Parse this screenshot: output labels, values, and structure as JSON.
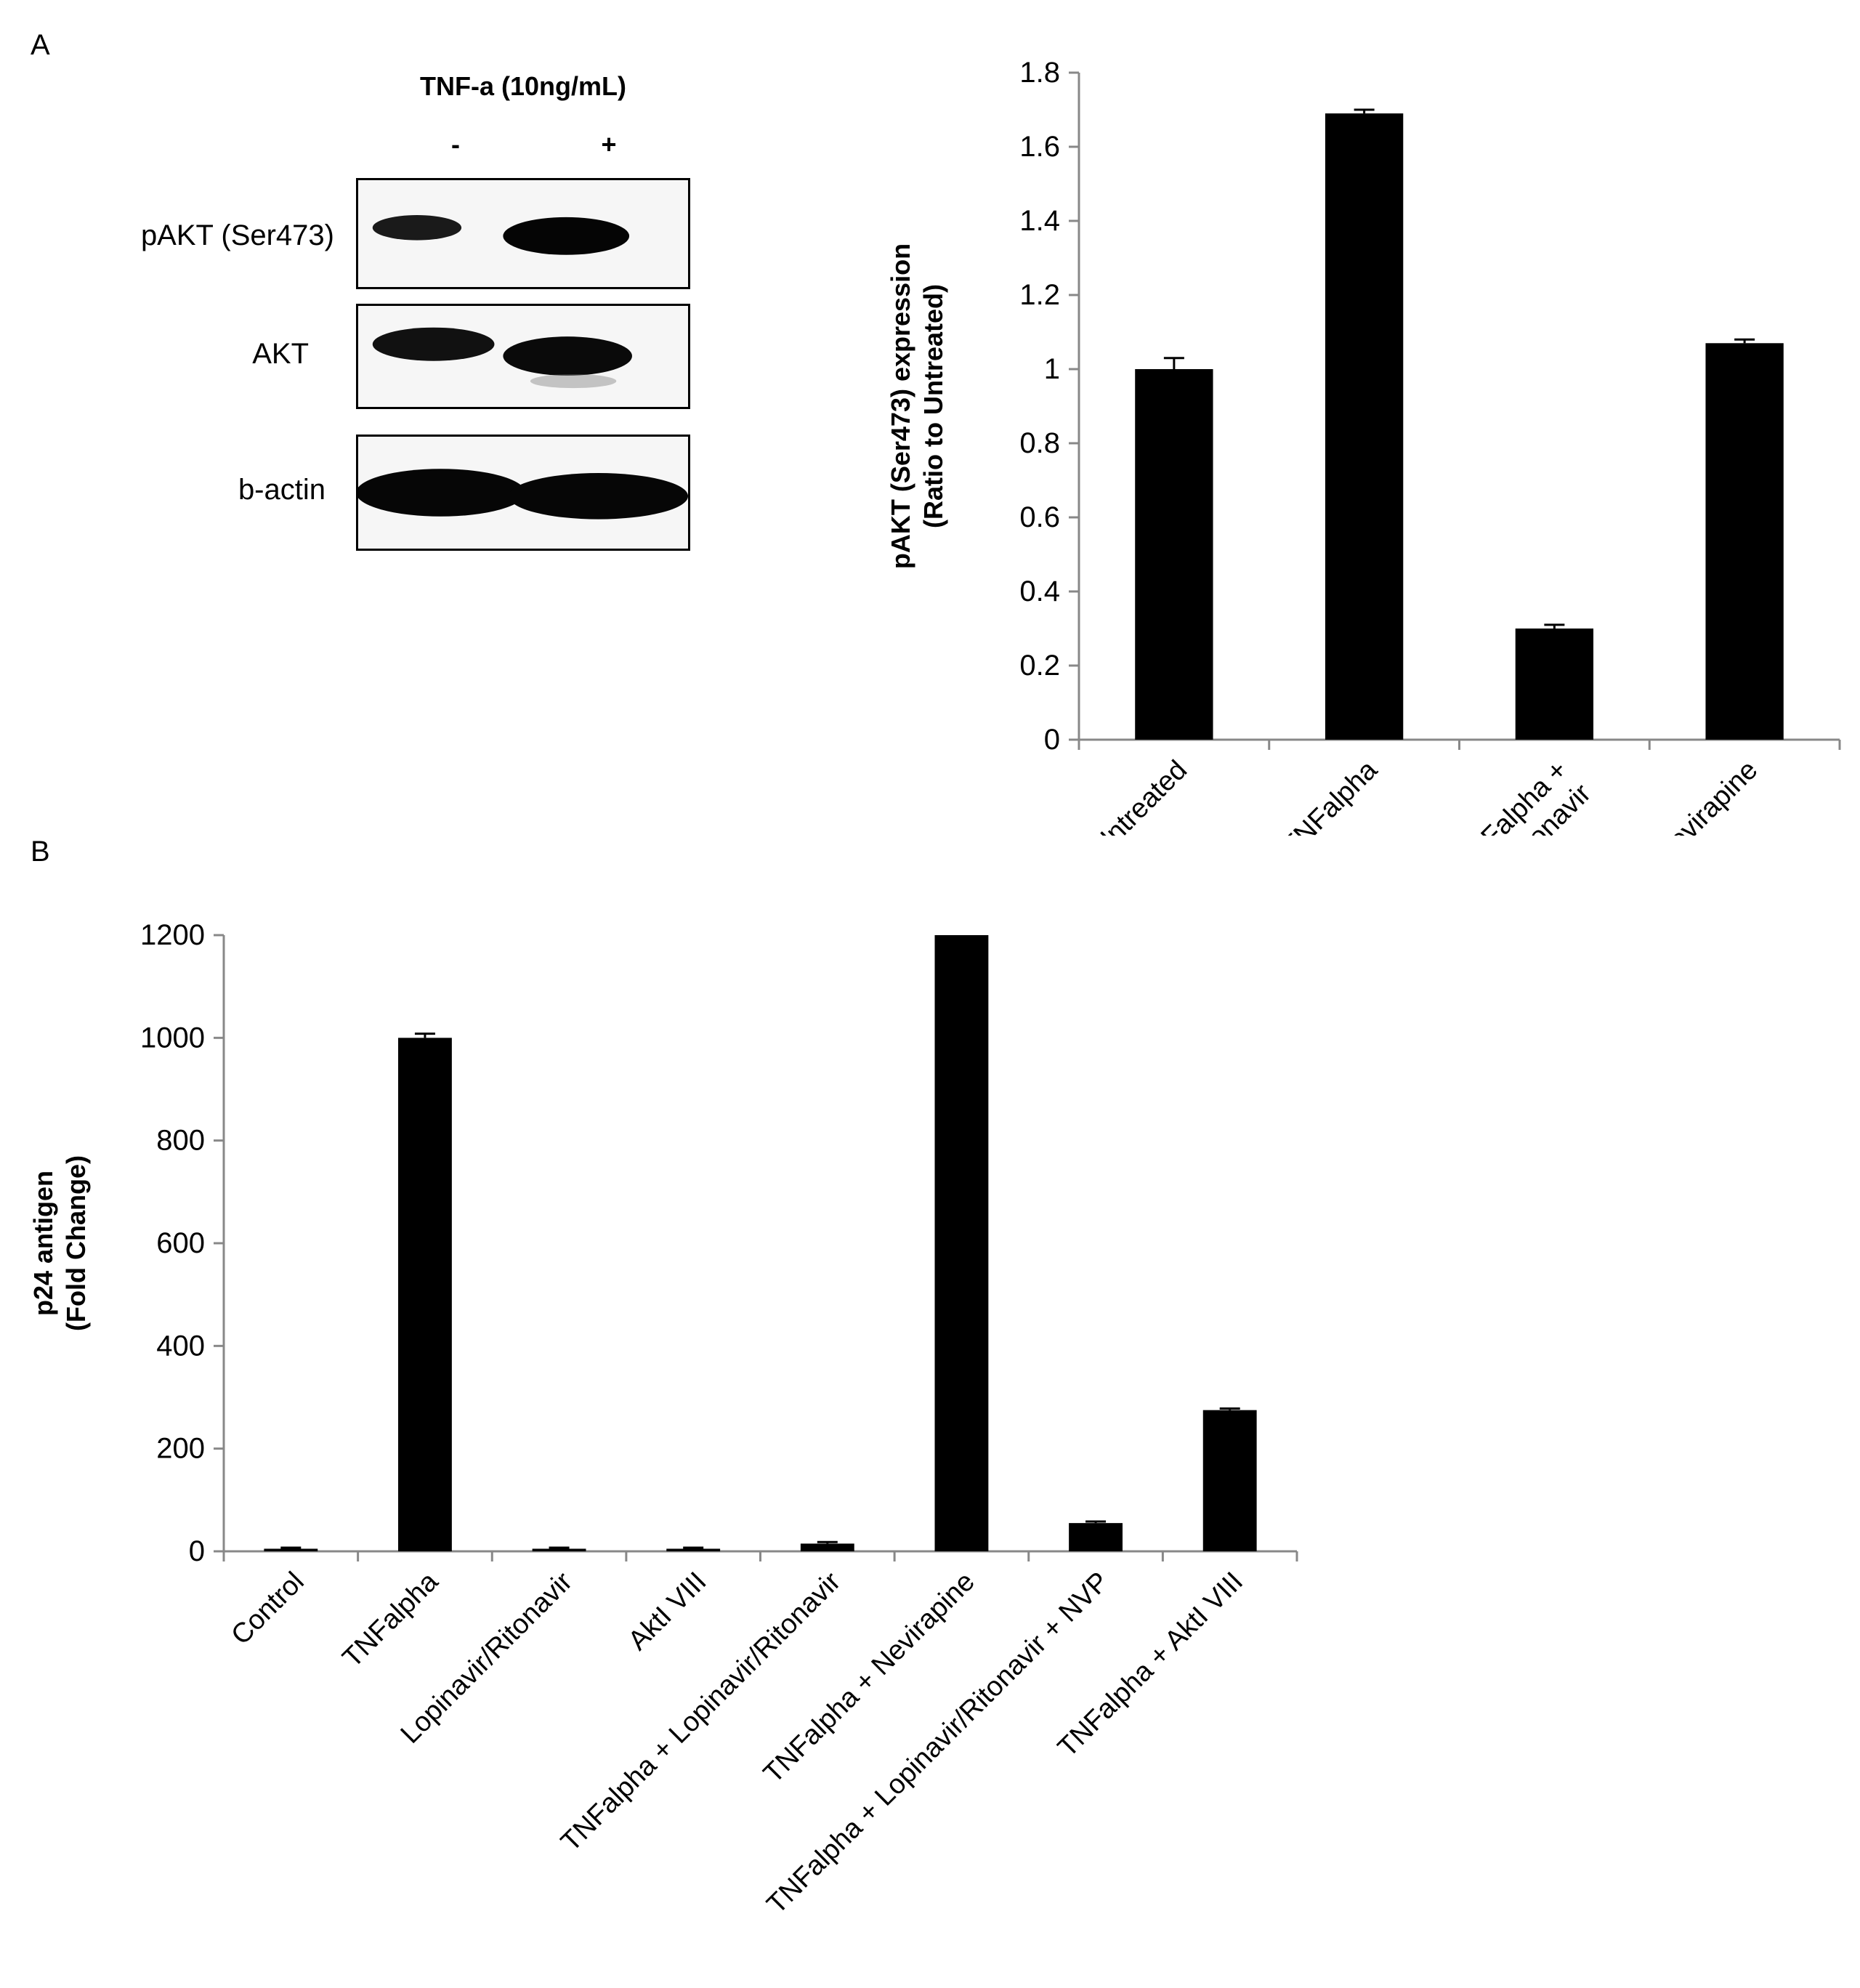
{
  "panels": {
    "a_label": "A",
    "b_label": "B"
  },
  "western_blot": {
    "treatment_header": "TNF-a (10ng/mL)",
    "lane_signs": [
      "-",
      "+"
    ],
    "rows": [
      {
        "label": "pAKT (Ser473)"
      },
      {
        "label": "AKT"
      },
      {
        "label": "b-actin"
      }
    ]
  },
  "chart_data": [
    {
      "type": "bar",
      "title": "",
      "xlabel": "",
      "ylabel": "pAKT (Ser473) expression (Ratio to Untreated)",
      "ylabel_lines": [
        "pAKT (Ser473) expression",
        "(Ratio to Untreated)"
      ],
      "categories": [
        "Untreated",
        "TNFalpha",
        "TNFalpha + Lopinavir/Ritonavir",
        "TNFalpha + Nevirapine"
      ],
      "category_label_lines": [
        [
          "Untreated"
        ],
        [
          "TNFalpha"
        ],
        [
          "TNFalpha +",
          "Lopinavir/Ritonavir"
        ],
        [
          "TNFalpha + Nevirapine"
        ]
      ],
      "values": [
        1.0,
        1.69,
        0.3,
        1.07
      ],
      "errors": [
        0.03,
        0.01,
        0.01,
        0.01
      ],
      "ylim": [
        0,
        1.8
      ],
      "yticks": [
        0,
        0.2,
        0.4,
        0.6,
        0.8,
        1,
        1.2,
        1.4,
        1.6,
        1.8
      ],
      "ytick_labels": [
        "0",
        "0.2",
        "0.4",
        "0.6",
        "0.8",
        "1",
        "1.2",
        "1.4",
        "1.6",
        "1.8"
      ],
      "bar_color": "#000000",
      "grid": false
    },
    {
      "type": "bar",
      "title": "",
      "xlabel": "",
      "ylabel": "p24 antigen (Fold Change)",
      "ylabel_lines": [
        "p24 antigen",
        "(Fold Change)"
      ],
      "categories": [
        "Control",
        "TNFalpha",
        "Lopinavir/Ritonavir",
        "AktI VIII",
        "TNFalpha + Lopinavir/Ritonavir",
        "TNFalpha + Nevirapine",
        "TNFalpha + Lopinavir/Ritonavir + NVP",
        "TNFalpha + AktI VIII"
      ],
      "values": [
        5,
        1000,
        5,
        5,
        15,
        1200,
        55,
        275
      ],
      "errors": [
        2,
        8,
        2,
        2,
        3,
        0,
        3,
        3
      ],
      "ylim": [
        0,
        1200
      ],
      "yticks": [
        0,
        200,
        400,
        600,
        800,
        1000,
        1200
      ],
      "ytick_labels": [
        "0",
        "200",
        "400",
        "600",
        "800",
        "1000",
        "1200"
      ],
      "bar_color": "#000000",
      "grid": false
    }
  ]
}
